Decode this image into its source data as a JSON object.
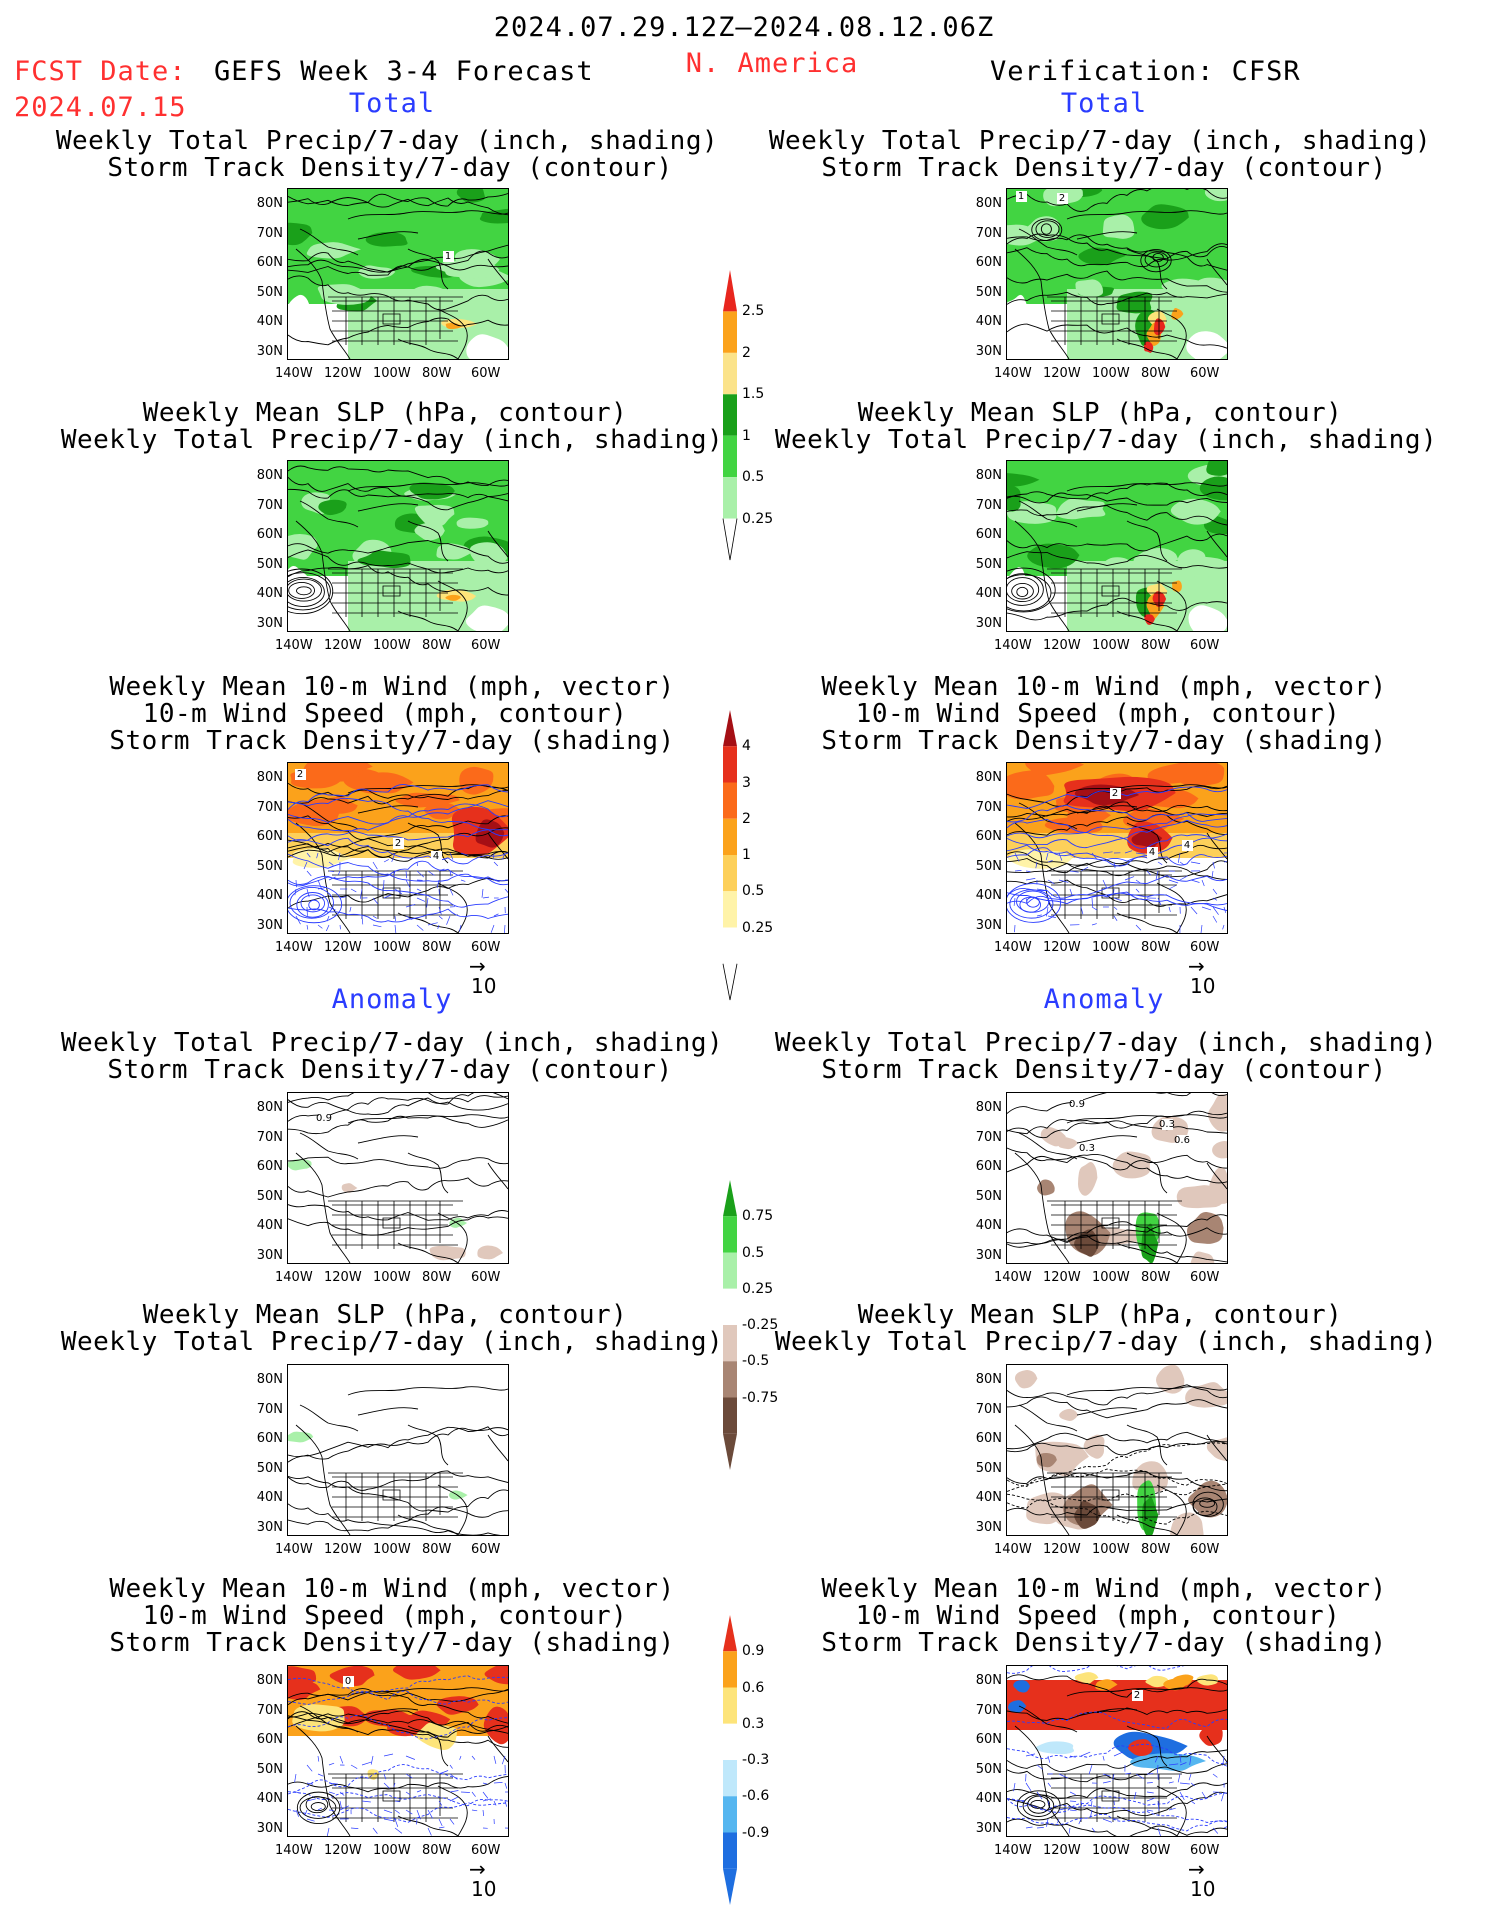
{
  "header": {
    "period": "2024.07.29.12Z–2024.08.12.06Z",
    "fcst_label": "FCST Date:",
    "fcst_date": "2024.07.15",
    "model_title": "GEFS Week 3-4 Forecast",
    "region": "N. America",
    "verification": "Verification: CFSR"
  },
  "sections": {
    "total_left": "Total",
    "total_right": "Total",
    "anomaly_left": "Anomaly",
    "anomaly_right": "Anomaly"
  },
  "panel_titles": {
    "p1": [
      "Weekly Total Precip/7-day (inch, shading)",
      "Storm Track Density/7-day (contour)"
    ],
    "p2": [
      "Weekly Mean SLP (hPa, contour)",
      "Weekly Total Precip/7-day (inch, shading)"
    ],
    "p3": [
      "Weekly Mean 10-m Wind (mph, vector)",
      "10-m Wind Speed (mph, contour)",
      "Storm Track Density/7-day (shading)"
    ]
  },
  "axes": {
    "lat_ticks": [
      "80N",
      "70N",
      "60N",
      "50N",
      "40N",
      "30N"
    ],
    "lon_ticks": [
      "140W",
      "120W",
      "100W",
      "80W",
      "60W"
    ]
  },
  "vector_ref": "10",
  "colorbars": {
    "precip_total": {
      "labels": [
        "2.5",
        "2",
        "1.5",
        "1",
        "0.5",
        "0.25"
      ],
      "colors": [
        "#e8261e",
        "#fba21b",
        "#fbe38a",
        "#1aa01a",
        "#42d442",
        "#a9f0a9"
      ]
    },
    "storm_total": {
      "labels": [
        "4",
        "3",
        "2",
        "1",
        "0.5",
        "0.25"
      ],
      "colors": [
        "#a50f15",
        "#e6301c",
        "#fb6a1a",
        "#fba21b",
        "#fdd05a",
        "#fff3a8",
        "#ffffff"
      ]
    },
    "precip_anom": {
      "labels": [
        "0.75",
        "0.5",
        "0.25",
        "-0.25",
        "-0.5",
        "-0.75"
      ],
      "colors": [
        "#1aa01a",
        "#42d442",
        "#a9f0a9",
        "#ffffff",
        "#e0c8bc",
        "#a88573",
        "#6b4a3a"
      ]
    },
    "storm_anom": {
      "labels": [
        "0.9",
        "0.6",
        "0.3",
        "-0.3",
        "-0.6",
        "-0.9"
      ],
      "colors": [
        "#e6301c",
        "#fba21b",
        "#fde47a",
        "#ffffff",
        "#bfe8fb",
        "#55b6f0",
        "#1e6ee0"
      ]
    }
  },
  "contour_labels": {
    "storm_f": "2",
    "storm_f2": "2",
    "storm_f3": "4",
    "storm_o": "2",
    "storm_o2": "4",
    "storm_o3": "4",
    "std_f": "1",
    "std_o": "1",
    "std_o2": "2",
    "anom_f": "0.9",
    "anom_o": "0.9",
    "anom_o2": "0.3",
    "anom_o3": "0.6",
    "anom_o4": "0.3",
    "anomw_f": "0",
    "anomw_o": "2"
  }
}
